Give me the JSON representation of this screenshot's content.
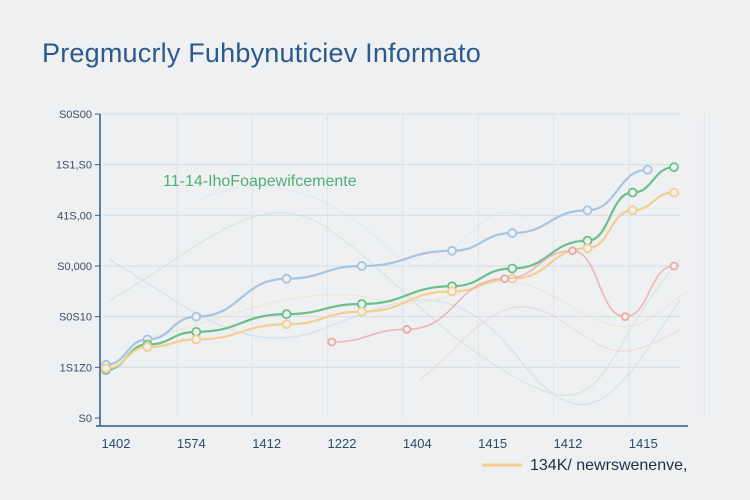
{
  "title": "Pregmucrly Fuhbynuticiev Informato",
  "chart_data": {
    "type": "line",
    "title": "Pregmucrly Fuhbynuticiev Informato",
    "categories": [
      "1402",
      "1574",
      "1412",
      "1222",
      "1404",
      "1415",
      "1412",
      "1415"
    ],
    "y_ticks": [
      "S0",
      "1S1Z0",
      "S0S10",
      "S0,000",
      "41S,00",
      "1S1,S0",
      "S0S00"
    ],
    "ylim": [
      0,
      6
    ],
    "grid": true,
    "annotation": "11-14-IhoFoapewifcemente",
    "legend": {
      "label": "134K/ newrswenenve,",
      "placement": "bottom-right"
    },
    "series": [
      {
        "color": "#a7c4e0",
        "x": [
          0.0,
          0.55,
          1.2,
          2.4,
          3.4,
          4.6,
          5.4,
          6.4,
          7.2
        ],
        "values": [
          1.05,
          1.55,
          2.0,
          2.75,
          3.0,
          3.3,
          3.65,
          4.1,
          4.9
        ]
      },
      {
        "color": "#6dbf8a",
        "x": [
          0.0,
          0.55,
          1.2,
          2.4,
          3.4,
          4.6,
          5.4,
          6.4,
          7.0,
          7.55
        ],
        "values": [
          0.95,
          1.45,
          1.7,
          2.05,
          2.25,
          2.6,
          2.95,
          3.5,
          4.45,
          4.95
        ]
      },
      {
        "color": "#f4cf8f",
        "x": [
          0.0,
          0.55,
          1.2,
          2.4,
          3.4,
          4.6,
          5.4,
          6.4,
          7.0,
          7.55
        ],
        "values": [
          0.98,
          1.4,
          1.55,
          1.85,
          2.1,
          2.5,
          2.75,
          3.35,
          4.1,
          4.45
        ]
      },
      {
        "color": "#eba9a6",
        "x": [
          3.0,
          4.0,
          5.3,
          6.2,
          6.9,
          7.55
        ],
        "values": [
          1.5,
          1.75,
          2.75,
          3.3,
          2.0,
          3.0
        ]
      }
    ]
  }
}
